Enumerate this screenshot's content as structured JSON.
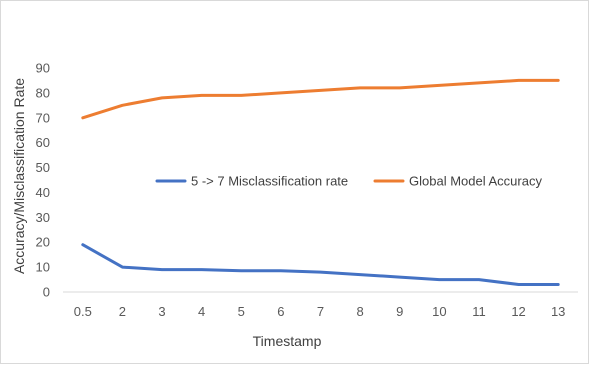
{
  "chart_data": {
    "type": "line",
    "title": "",
    "xlabel": "Timestamp",
    "ylabel": "Accuracy/Misclassification Rate",
    "categories": [
      "0.5",
      "2",
      "3",
      "4",
      "5",
      "6",
      "7",
      "8",
      "9",
      "10",
      "11",
      "12",
      "13"
    ],
    "ylim": [
      0,
      90
    ],
    "yticks": [
      0,
      10,
      20,
      30,
      40,
      50,
      60,
      70,
      80,
      90
    ],
    "grid": false,
    "legend_position": "center",
    "series": [
      {
        "name": "5 -> 7 Misclassification rate",
        "color": "#4472c4",
        "values": [
          19,
          10,
          9,
          9,
          8.5,
          8.5,
          8,
          7,
          6,
          5,
          5,
          3,
          3
        ]
      },
      {
        "name": "Global Model Accuracy",
        "color": "#ed7d31",
        "values": [
          70,
          75,
          78,
          79,
          79,
          80,
          81,
          82,
          82,
          83,
          84,
          85,
          85
        ]
      }
    ]
  }
}
